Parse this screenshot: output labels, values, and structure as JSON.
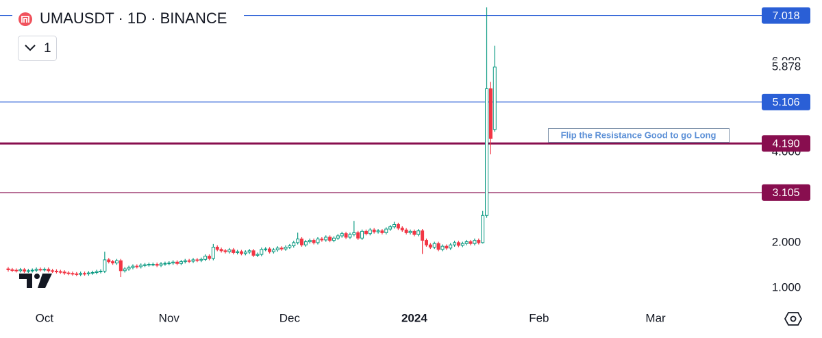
{
  "chart_data": {
    "type": "candlestick",
    "title": "UMAUSDT · 1D · BINANCE",
    "legend_label": "1",
    "annotation": "Flip the Resistance Good to go Long",
    "colors": {
      "up": "#089981",
      "down": "#f23645"
    },
    "ylim": [
      0.62,
      7.36
    ],
    "yticks": [
      {
        "value": 1,
        "label": "1.000"
      },
      {
        "value": 2,
        "label": "2.000"
      },
      {
        "value": 4,
        "label": "4.000"
      },
      {
        "value": 6,
        "label": "6.000"
      }
    ],
    "last_price": {
      "value": 5.878,
      "label": "5.878"
    },
    "levels": [
      {
        "value": 7.018,
        "label": "7.018",
        "color": "#2a5fd6",
        "width": 1.2
      },
      {
        "value": 5.106,
        "label": "5.106",
        "color": "#2a5fd6",
        "width": 1.2
      },
      {
        "value": 4.19,
        "label": "4.190",
        "color": "#880e4f",
        "width": 3
      },
      {
        "value": 3.105,
        "label": "3.105",
        "color": "#880e4f",
        "width": 1.2
      }
    ],
    "categories": [
      null,
      null,
      null,
      null,
      null,
      null,
      null,
      null,
      null,
      "Oct",
      null,
      null,
      null,
      null,
      null,
      null,
      null,
      null,
      null,
      null,
      null,
      null,
      null,
      null,
      null,
      null,
      null,
      null,
      null,
      null,
      null,
      null,
      null,
      null,
      null,
      null,
      null,
      null,
      null,
      null,
      "Nov",
      null,
      null,
      null,
      null,
      null,
      null,
      null,
      null,
      null,
      null,
      null,
      null,
      null,
      null,
      null,
      null,
      null,
      null,
      null,
      null,
      null,
      null,
      null,
      null,
      null,
      null,
      null,
      null,
      null,
      "Dec",
      null,
      null,
      null,
      null,
      null,
      null,
      null,
      null,
      null,
      null,
      null,
      null,
      null,
      null,
      null,
      null,
      null,
      null,
      null,
      null,
      null,
      null,
      null,
      null,
      null,
      null,
      null,
      null,
      null,
      null,
      "2024",
      null,
      null,
      null,
      null,
      null,
      null,
      null,
      null,
      null,
      null,
      null,
      null,
      null,
      null,
      null,
      null,
      null,
      null,
      null,
      null,
      null,
      null,
      null,
      null,
      null,
      null,
      null,
      null,
      null,
      null,
      "Feb",
      null,
      null,
      null,
      null,
      null,
      null,
      null,
      null,
      null,
      null,
      null,
      null,
      null,
      null,
      null,
      null,
      null,
      null,
      null,
      null,
      null,
      null,
      null,
      null,
      null,
      null,
      null,
      null,
      "Mar"
    ],
    "open": [
      1.42,
      1.4,
      1.39,
      1.38,
      1.4,
      1.37,
      1.38,
      1.39,
      1.41,
      1.4,
      1.41,
      1.38,
      1.37,
      1.36,
      1.35,
      1.33,
      1.32,
      1.31,
      1.3,
      1.32,
      1.31,
      1.33,
      1.34,
      1.36,
      1.37,
      1.62,
      1.58,
      1.55,
      1.6,
      1.38,
      1.42,
      1.45,
      1.48,
      1.47,
      1.5,
      1.51,
      1.52,
      1.52,
      1.5,
      1.53,
      1.54,
      1.55,
      1.57,
      1.54,
      1.58,
      1.6,
      1.59,
      1.62,
      1.61,
      1.63,
      1.7,
      1.65,
      1.9,
      1.85,
      1.82,
      1.8,
      1.84,
      1.78,
      1.8,
      1.76,
      1.79,
      1.82,
      1.72,
      1.74,
      1.85,
      1.86,
      1.8,
      1.84,
      1.88,
      1.86,
      1.9,
      1.93,
      2.0,
      2.08,
      1.95,
      2.02,
      2.05,
      2.0,
      2.08,
      2.06,
      2.12,
      2.05,
      2.1,
      2.15,
      2.2,
      2.12,
      2.18,
      2.22,
      2.1,
      2.25,
      2.2,
      2.28,
      2.24,
      2.26,
      2.22,
      2.3,
      2.35,
      2.4,
      2.32,
      2.28,
      2.22,
      2.25,
      2.18,
      2.26,
      2.05,
      1.95,
      1.9,
      1.98,
      1.85,
      1.92,
      1.88,
      1.95,
      2.0,
      1.94,
      1.98,
      2.02,
      1.98,
      2.05,
      2.0,
      2.6,
      5.4,
      4.5,
      null,
      null,
      null,
      null,
      null,
      null,
      null,
      null,
      null,
      null,
      null,
      null,
      null,
      null,
      null,
      null,
      null,
      null,
      null,
      null,
      null,
      null,
      null,
      null,
      null,
      null,
      null,
      null,
      null,
      null,
      null,
      null,
      null,
      null,
      null,
      null,
      null,
      null,
      null,
      null
    ],
    "high": [
      1.46,
      1.44,
      1.43,
      1.44,
      1.44,
      1.42,
      1.43,
      1.45,
      1.45,
      1.45,
      1.45,
      1.42,
      1.41,
      1.4,
      1.39,
      1.37,
      1.36,
      1.35,
      1.36,
      1.36,
      1.37,
      1.38,
      1.4,
      1.41,
      1.8,
      1.66,
      1.62,
      1.64,
      1.64,
      1.46,
      1.49,
      1.52,
      1.52,
      1.54,
      1.55,
      1.56,
      1.56,
      1.56,
      1.57,
      1.58,
      1.59,
      1.61,
      1.61,
      1.62,
      1.64,
      1.64,
      1.66,
      1.66,
      1.67,
      1.74,
      1.74,
      1.97,
      1.94,
      1.89,
      1.86,
      1.88,
      1.88,
      1.84,
      1.84,
      1.83,
      1.86,
      1.86,
      1.78,
      1.89,
      1.9,
      1.9,
      1.88,
      1.92,
      1.92,
      1.94,
      1.97,
      2.04,
      2.22,
      2.12,
      2.06,
      2.09,
      2.09,
      2.12,
      2.12,
      2.16,
      2.16,
      2.14,
      2.19,
      2.24,
      2.24,
      2.22,
      2.48,
      2.26,
      2.29,
      2.29,
      2.32,
      2.32,
      2.3,
      2.3,
      2.34,
      2.39,
      2.46,
      2.44,
      2.36,
      2.32,
      2.29,
      2.29,
      2.3,
      2.3,
      2.09,
      1.99,
      2.02,
      2.02,
      1.96,
      1.96,
      1.99,
      2.04,
      2.04,
      2.02,
      2.06,
      2.06,
      2.09,
      2.09,
      2.7,
      7.2,
      5.55,
      6.35,
      null,
      null,
      null,
      null,
      null,
      null,
      null,
      null,
      null,
      null,
      null,
      null,
      null,
      null,
      null,
      null,
      null,
      null,
      null,
      null,
      null,
      null,
      null,
      null,
      null,
      null,
      null,
      null,
      null,
      null,
      null,
      null,
      null,
      null,
      null,
      null,
      null,
      null,
      null,
      null
    ],
    "low": [
      1.36,
      1.35,
      1.34,
      1.34,
      1.33,
      1.33,
      1.34,
      1.35,
      1.36,
      1.36,
      1.34,
      1.33,
      1.32,
      1.31,
      1.29,
      1.28,
      1.27,
      1.26,
      1.26,
      1.27,
      1.27,
      1.29,
      1.3,
      1.32,
      1.33,
      1.54,
      1.51,
      1.51,
      1.24,
      1.34,
      1.38,
      1.41,
      1.43,
      1.43,
      1.46,
      1.47,
      1.48,
      1.46,
      1.46,
      1.49,
      1.5,
      1.51,
      1.5,
      1.5,
      1.54,
      1.55,
      1.55,
      1.57,
      1.57,
      1.59,
      1.61,
      1.61,
      1.81,
      1.78,
      1.76,
      1.76,
      1.74,
      1.74,
      1.72,
      1.72,
      1.75,
      1.68,
      1.68,
      1.7,
      1.81,
      1.76,
      1.76,
      1.8,
      1.82,
      1.82,
      1.86,
      1.89,
      1.96,
      1.91,
      1.91,
      1.98,
      1.96,
      1.96,
      2.02,
      2.02,
      2.01,
      2.01,
      2.06,
      2.11,
      2.08,
      2.08,
      2.14,
      2.06,
      2.06,
      2.16,
      2.16,
      2.2,
      2.2,
      2.18,
      2.18,
      2.26,
      2.31,
      2.28,
      2.24,
      2.18,
      2.18,
      2.14,
      2.14,
      1.75,
      1.91,
      1.86,
      1.86,
      1.81,
      1.81,
      1.84,
      1.84,
      1.91,
      1.9,
      1.9,
      1.94,
      1.94,
      1.94,
      1.96,
      1.98,
      2.55,
      3.95,
      4.45,
      null,
      null,
      null,
      null,
      null,
      null,
      null,
      null,
      null,
      null,
      null,
      null,
      null,
      null,
      null,
      null,
      null,
      null,
      null,
      null,
      null,
      null,
      null,
      null,
      null,
      null,
      null,
      null,
      null,
      null,
      null,
      null,
      null,
      null,
      null,
      null,
      null,
      null,
      null,
      null
    ],
    "close": [
      1.4,
      1.39,
      1.38,
      1.4,
      1.37,
      1.38,
      1.39,
      1.41,
      1.4,
      1.41,
      1.38,
      1.37,
      1.36,
      1.35,
      1.33,
      1.32,
      1.31,
      1.3,
      1.32,
      1.31,
      1.33,
      1.34,
      1.36,
      1.37,
      1.62,
      1.58,
      1.55,
      1.6,
      1.38,
      1.42,
      1.45,
      1.48,
      1.47,
      1.5,
      1.51,
      1.52,
      1.52,
      1.5,
      1.53,
      1.54,
      1.55,
      1.57,
      1.54,
      1.58,
      1.6,
      1.59,
      1.62,
      1.61,
      1.63,
      1.7,
      1.65,
      1.9,
      1.85,
      1.82,
      1.8,
      1.84,
      1.78,
      1.8,
      1.76,
      1.79,
      1.82,
      1.72,
      1.74,
      1.85,
      1.86,
      1.8,
      1.84,
      1.88,
      1.86,
      1.9,
      1.93,
      2.0,
      2.08,
      1.95,
      2.02,
      2.05,
      2.0,
      2.08,
      2.06,
      2.12,
      2.05,
      2.1,
      2.15,
      2.2,
      2.12,
      2.18,
      2.22,
      2.1,
      2.25,
      2.2,
      2.28,
      2.24,
      2.26,
      2.22,
      2.3,
      2.35,
      2.4,
      2.32,
      2.28,
      2.22,
      2.25,
      2.18,
      2.26,
      2.05,
      1.95,
      1.9,
      1.98,
      1.85,
      1.92,
      1.88,
      1.95,
      2.0,
      1.94,
      1.98,
      2.02,
      1.98,
      2.05,
      2.0,
      2.6,
      5.4,
      4.3,
      5.878,
      null,
      null,
      null,
      null,
      null,
      null,
      null,
      null,
      null,
      null,
      null,
      null,
      null,
      null,
      null,
      null,
      null,
      null,
      null,
      null,
      null,
      null,
      null,
      null,
      null,
      null,
      null,
      null,
      null,
      null,
      null,
      null,
      null,
      null,
      null,
      null,
      null,
      null,
      null,
      null
    ]
  }
}
